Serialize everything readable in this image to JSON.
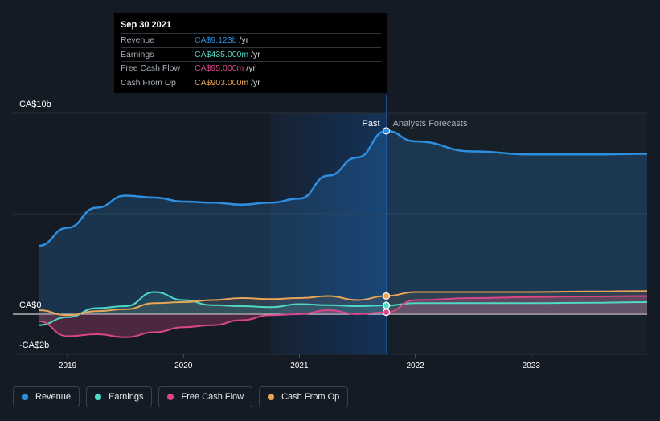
{
  "chart_data": {
    "type": "area",
    "y_axis_labels": [
      "CA$10b",
      "CA$0",
      "-CA$2b"
    ],
    "ylim": [
      -4,
      10
    ],
    "xlim": [
      2018.75,
      2024.0
    ],
    "x_ticks": [
      {
        "label": "2019",
        "x": 2019.0
      },
      {
        "label": "2020",
        "x": 2020.0
      },
      {
        "label": "2021",
        "x": 2021.0
      },
      {
        "label": "2022",
        "x": 2022.0
      },
      {
        "label": "2023",
        "x": 2023.0
      }
    ],
    "past_label": "Past",
    "forecast_label": "Analysts Forecasts",
    "divider_x": 2021.75,
    "highlight_start": 2020.75,
    "series": [
      {
        "name": "Revenue",
        "color": "#2e8fe0",
        "points": [
          [
            2018.75,
            3.4
          ],
          [
            2019.0,
            4.3
          ],
          [
            2019.25,
            5.3
          ],
          [
            2019.5,
            5.9
          ],
          [
            2019.75,
            5.8
          ],
          [
            2020.0,
            5.6
          ],
          [
            2020.25,
            5.55
          ],
          [
            2020.5,
            5.45
          ],
          [
            2020.75,
            5.55
          ],
          [
            2021.0,
            5.75
          ],
          [
            2021.25,
            6.9
          ],
          [
            2021.5,
            7.8
          ],
          [
            2021.75,
            9.123
          ],
          [
            2022.0,
            8.6
          ],
          [
            2022.5,
            8.1
          ],
          [
            2023.0,
            7.95
          ],
          [
            2023.5,
            7.95
          ],
          [
            2024.0,
            7.98
          ]
        ]
      },
      {
        "name": "Earnings",
        "color": "#4fd9c4",
        "points": [
          [
            2018.75,
            -0.55
          ],
          [
            2019.0,
            -0.15
          ],
          [
            2019.25,
            0.3
          ],
          [
            2019.5,
            0.4
          ],
          [
            2019.75,
            1.1
          ],
          [
            2020.0,
            0.7
          ],
          [
            2020.25,
            0.45
          ],
          [
            2020.5,
            0.4
          ],
          [
            2020.75,
            0.35
          ],
          [
            2021.0,
            0.5
          ],
          [
            2021.25,
            0.45
          ],
          [
            2021.5,
            0.4
          ],
          [
            2021.75,
            0.435
          ],
          [
            2022.0,
            0.55
          ],
          [
            2022.5,
            0.55
          ],
          [
            2023.0,
            0.55
          ],
          [
            2023.5,
            0.57
          ],
          [
            2024.0,
            0.6
          ]
        ]
      },
      {
        "name": "Free Cash Flow",
        "color": "#d9478a",
        "points": [
          [
            2018.75,
            -0.35
          ],
          [
            2019.0,
            -1.1
          ],
          [
            2019.25,
            -1.0
          ],
          [
            2019.5,
            -1.15
          ],
          [
            2019.75,
            -0.9
          ],
          [
            2020.0,
            -0.65
          ],
          [
            2020.25,
            -0.55
          ],
          [
            2020.5,
            -0.3
          ],
          [
            2020.75,
            -0.05
          ],
          [
            2021.0,
            0.0
          ],
          [
            2021.25,
            0.2
          ],
          [
            2021.5,
            0.0
          ],
          [
            2021.75,
            0.095
          ],
          [
            2022.0,
            0.7
          ],
          [
            2022.5,
            0.8
          ],
          [
            2023.0,
            0.85
          ],
          [
            2023.5,
            0.88
          ],
          [
            2024.0,
            0.9
          ]
        ]
      },
      {
        "name": "Cash From Op",
        "color": "#e9a455",
        "points": [
          [
            2018.75,
            0.2
          ],
          [
            2019.0,
            -0.05
          ],
          [
            2019.25,
            0.15
          ],
          [
            2019.5,
            0.25
          ],
          [
            2019.75,
            0.55
          ],
          [
            2020.0,
            0.6
          ],
          [
            2020.25,
            0.7
          ],
          [
            2020.5,
            0.8
          ],
          [
            2020.75,
            0.75
          ],
          [
            2021.0,
            0.8
          ],
          [
            2021.25,
            0.9
          ],
          [
            2021.5,
            0.7
          ],
          [
            2021.75,
            0.903
          ],
          [
            2022.0,
            1.1
          ],
          [
            2022.5,
            1.1
          ],
          [
            2023.0,
            1.1
          ],
          [
            2023.5,
            1.13
          ],
          [
            2024.0,
            1.15
          ]
        ]
      }
    ]
  },
  "tooltip": {
    "date": "Sep 30 2021",
    "rows": [
      {
        "label": "Revenue",
        "value": "CA$9.123b",
        "unit": "/yr",
        "color": "#2e8fe0"
      },
      {
        "label": "Earnings",
        "value": "CA$435.000m",
        "unit": "/yr",
        "color": "#4fd9c4"
      },
      {
        "label": "Free Cash Flow",
        "value": "CA$95.000m",
        "unit": "/yr",
        "color": "#d9478a"
      },
      {
        "label": "Cash From Op",
        "value": "CA$903.000m",
        "unit": "/yr",
        "color": "#e9a455"
      }
    ]
  },
  "legend": [
    {
      "label": "Revenue",
      "color": "#2e8fe0"
    },
    {
      "label": "Earnings",
      "color": "#4fd9c4"
    },
    {
      "label": "Free Cash Flow",
      "color": "#d9478a"
    },
    {
      "label": "Cash From Op",
      "color": "#e9a455"
    }
  ]
}
